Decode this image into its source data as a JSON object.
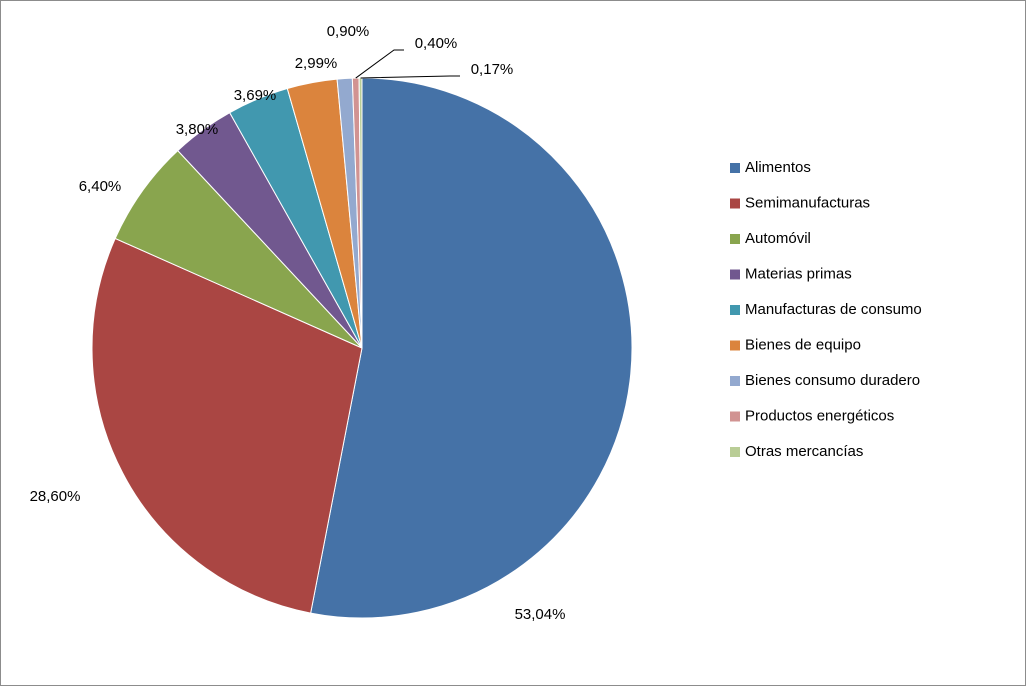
{
  "chart_data": {
    "type": "pie",
    "categories": [
      "Alimentos",
      "Semimanufacturas",
      "Automóvil",
      "Materias primas",
      "Manufacturas de consumo",
      "Bienes de equipo",
      "Bienes consumo duradero",
      "Productos energéticos",
      "Otras mercancías"
    ],
    "values": [
      53.04,
      28.6,
      6.4,
      3.8,
      3.69,
      2.99,
      0.9,
      0.4,
      0.17
    ],
    "value_labels": [
      "53,04%",
      "28,60%",
      "6,40%",
      "3,80%",
      "3,69%",
      "2,99%",
      "0,90%",
      "0,40%",
      "0,17%"
    ],
    "colors": [
      "#4572a7",
      "#aa4643",
      "#89a54e",
      "#71588f",
      "#4198af",
      "#db843d",
      "#93a9cf",
      "#d19392",
      "#b9cd96"
    ],
    "legend": "right"
  }
}
